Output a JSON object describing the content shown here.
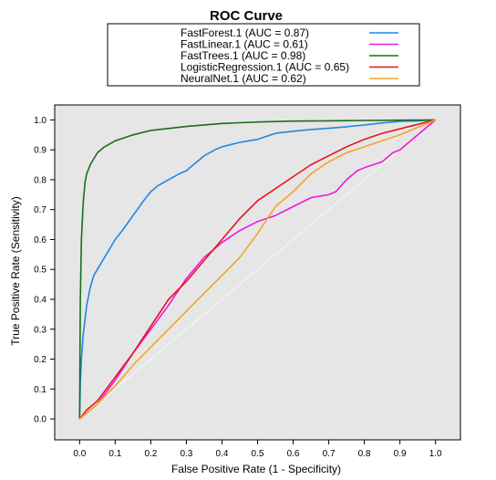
{
  "chart_data": {
    "type": "line",
    "title": "ROC Curve",
    "xlabel": "False Positive Rate (1 - Specificity)",
    "ylabel": "True Positive Rate (Sensitivity)",
    "xlim": [
      -0.07,
      1.07
    ],
    "ylim": [
      -0.07,
      1.05
    ],
    "xticks": [
      "0.0",
      "0.1",
      "0.2",
      "0.3",
      "0.4",
      "0.5",
      "0.6",
      "0.7",
      "0.8",
      "0.9",
      "1.0"
    ],
    "yticks": [
      "0.0",
      "0.1",
      "0.2",
      "0.3",
      "0.4",
      "0.5",
      "0.6",
      "0.7",
      "0.8",
      "0.9",
      "1.0"
    ],
    "grid": false,
    "legend_position": "top",
    "background_color": "#e6e6e6",
    "diagonal_color": "#f6f6f6",
    "series": [
      {
        "name": "FastForest.1 (AUC = 0.87)",
        "color": "#1e88e5",
        "points": [
          [
            0,
            0
          ],
          [
            0.002,
            0.12
          ],
          [
            0.005,
            0.2
          ],
          [
            0.01,
            0.28
          ],
          [
            0.02,
            0.38
          ],
          [
            0.03,
            0.44
          ],
          [
            0.04,
            0.48
          ],
          [
            0.06,
            0.52
          ],
          [
            0.08,
            0.56
          ],
          [
            0.1,
            0.6
          ],
          [
            0.12,
            0.63
          ],
          [
            0.15,
            0.68
          ],
          [
            0.18,
            0.73
          ],
          [
            0.2,
            0.76
          ],
          [
            0.22,
            0.78
          ],
          [
            0.25,
            0.8
          ],
          [
            0.28,
            0.82
          ],
          [
            0.3,
            0.83
          ],
          [
            0.32,
            0.85
          ],
          [
            0.35,
            0.88
          ],
          [
            0.38,
            0.9
          ],
          [
            0.4,
            0.91
          ],
          [
            0.45,
            0.925
          ],
          [
            0.5,
            0.935
          ],
          [
            0.55,
            0.955
          ],
          [
            0.6,
            0.962
          ],
          [
            0.65,
            0.968
          ],
          [
            0.7,
            0.972
          ],
          [
            0.75,
            0.977
          ],
          [
            0.8,
            0.983
          ],
          [
            0.85,
            0.99
          ],
          [
            0.9,
            0.995
          ],
          [
            0.95,
            0.997
          ],
          [
            1,
            1
          ]
        ]
      },
      {
        "name": "FastLinear.1 (AUC = 0.61)",
        "color": "#f018e0",
        "points": [
          [
            0,
            0
          ],
          [
            0.02,
            0.02
          ],
          [
            0.05,
            0.05
          ],
          [
            0.1,
            0.13
          ],
          [
            0.15,
            0.22
          ],
          [
            0.2,
            0.3
          ],
          [
            0.25,
            0.38
          ],
          [
            0.3,
            0.47
          ],
          [
            0.35,
            0.54
          ],
          [
            0.4,
            0.59
          ],
          [
            0.45,
            0.63
          ],
          [
            0.5,
            0.66
          ],
          [
            0.55,
            0.68
          ],
          [
            0.6,
            0.71
          ],
          [
            0.65,
            0.74
          ],
          [
            0.7,
            0.75
          ],
          [
            0.72,
            0.76
          ],
          [
            0.75,
            0.8
          ],
          [
            0.78,
            0.83
          ],
          [
            0.8,
            0.84
          ],
          [
            0.85,
            0.86
          ],
          [
            0.88,
            0.89
          ],
          [
            0.9,
            0.9
          ],
          [
            0.93,
            0.93
          ],
          [
            0.95,
            0.95
          ],
          [
            0.98,
            0.98
          ],
          [
            1,
            1
          ]
        ]
      },
      {
        "name": "FastTrees.1 (AUC = 0.98)",
        "color": "#1b6e1b",
        "points": [
          [
            0,
            0
          ],
          [
            0.002,
            0.4
          ],
          [
            0.005,
            0.6
          ],
          [
            0.01,
            0.72
          ],
          [
            0.015,
            0.79
          ],
          [
            0.02,
            0.82
          ],
          [
            0.03,
            0.85
          ],
          [
            0.05,
            0.89
          ],
          [
            0.07,
            0.91
          ],
          [
            0.1,
            0.93
          ],
          [
            0.15,
            0.95
          ],
          [
            0.2,
            0.965
          ],
          [
            0.3,
            0.978
          ],
          [
            0.4,
            0.988
          ],
          [
            0.5,
            0.993
          ],
          [
            0.6,
            0.996
          ],
          [
            0.7,
            0.997
          ],
          [
            0.8,
            0.998
          ],
          [
            0.9,
            0.999
          ],
          [
            1,
            1
          ]
        ]
      },
      {
        "name": "LogisticRegression.1 (AUC = 0.65)",
        "color": "#e8141e",
        "points": [
          [
            0,
            0
          ],
          [
            0.02,
            0.03
          ],
          [
            0.05,
            0.06
          ],
          [
            0.1,
            0.14
          ],
          [
            0.15,
            0.22
          ],
          [
            0.2,
            0.31
          ],
          [
            0.25,
            0.4
          ],
          [
            0.3,
            0.46
          ],
          [
            0.35,
            0.53
          ],
          [
            0.4,
            0.6
          ],
          [
            0.45,
            0.67
          ],
          [
            0.5,
            0.73
          ],
          [
            0.55,
            0.77
          ],
          [
            0.6,
            0.81
          ],
          [
            0.65,
            0.85
          ],
          [
            0.7,
            0.88
          ],
          [
            0.75,
            0.91
          ],
          [
            0.8,
            0.935
          ],
          [
            0.85,
            0.955
          ],
          [
            0.9,
            0.97
          ],
          [
            0.95,
            0.985
          ],
          [
            1,
            1
          ]
        ]
      },
      {
        "name": "NeuralNet.1 (AUC = 0.62)",
        "color": "#f5a623",
        "points": [
          [
            0,
            0
          ],
          [
            0.02,
            0.02
          ],
          [
            0.05,
            0.05
          ],
          [
            0.1,
            0.11
          ],
          [
            0.15,
            0.18
          ],
          [
            0.2,
            0.24
          ],
          [
            0.25,
            0.3
          ],
          [
            0.3,
            0.36
          ],
          [
            0.35,
            0.42
          ],
          [
            0.4,
            0.48
          ],
          [
            0.45,
            0.54
          ],
          [
            0.5,
            0.62
          ],
          [
            0.55,
            0.71
          ],
          [
            0.6,
            0.76
          ],
          [
            0.65,
            0.82
          ],
          [
            0.7,
            0.86
          ],
          [
            0.75,
            0.89
          ],
          [
            0.8,
            0.91
          ],
          [
            0.85,
            0.93
          ],
          [
            0.9,
            0.95
          ],
          [
            0.95,
            0.975
          ],
          [
            1,
            1
          ]
        ]
      }
    ]
  }
}
